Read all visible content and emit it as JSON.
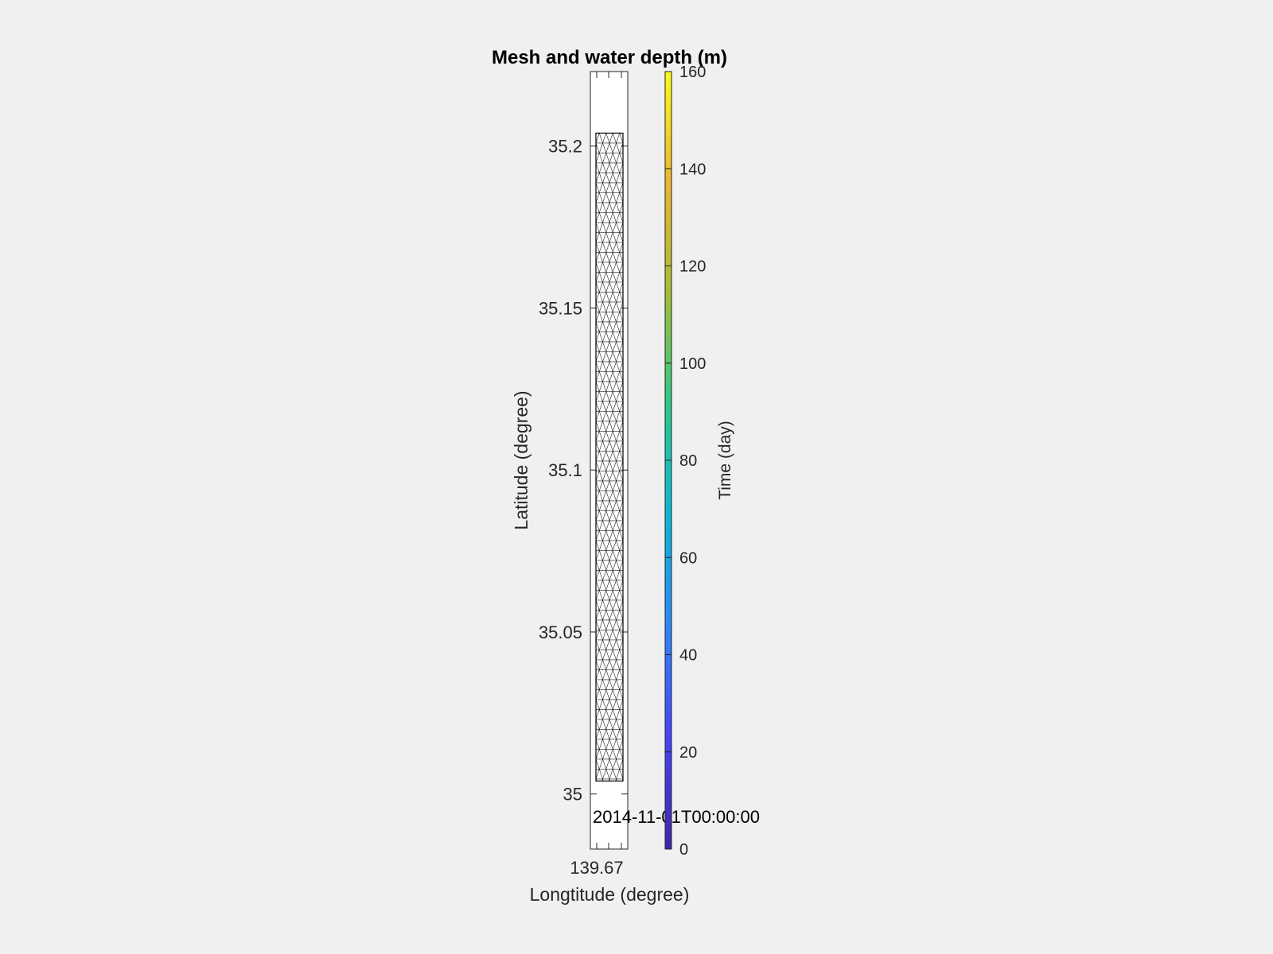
{
  "figure": {
    "background": "#f0f0f0"
  },
  "chart_data": {
    "type": "mesh",
    "title": "Mesh and water depth (m)",
    "xlabel": "Longtitude (degree)",
    "ylabel": "Latitude (degree)",
    "x_ticks": [
      139.67
    ],
    "x_tick_labels": [
      "139.67"
    ],
    "y_ticks": [
      35,
      35.05,
      35.1,
      35.15,
      35.2
    ],
    "y_tick_labels": [
      "35",
      "35.05",
      "35.1",
      "35.15",
      "35.2"
    ],
    "ylim": [
      34.983,
      35.223
    ],
    "mesh_domain": {
      "lat_range": [
        35.004,
        35.204
      ],
      "mesh_color": "#000000",
      "fill": "#ffffff"
    },
    "timestamp_label": "2014-11-01T00:00:00",
    "colorbar": {
      "label": "Time (day)",
      "range": [
        0,
        160
      ],
      "ticks": [
        0,
        20,
        40,
        60,
        80,
        100,
        120,
        140,
        160
      ],
      "tick_labels": [
        "0",
        "20",
        "40",
        "60",
        "80",
        "100",
        "120",
        "140",
        "160"
      ],
      "colormap": "parula",
      "colormap_stops": [
        "#3e26a8",
        "#4743f8",
        "#2e87f7",
        "#0cb6d5",
        "#2dc88a",
        "#a3bd38",
        "#ecb534",
        "#f9fb15"
      ]
    }
  }
}
